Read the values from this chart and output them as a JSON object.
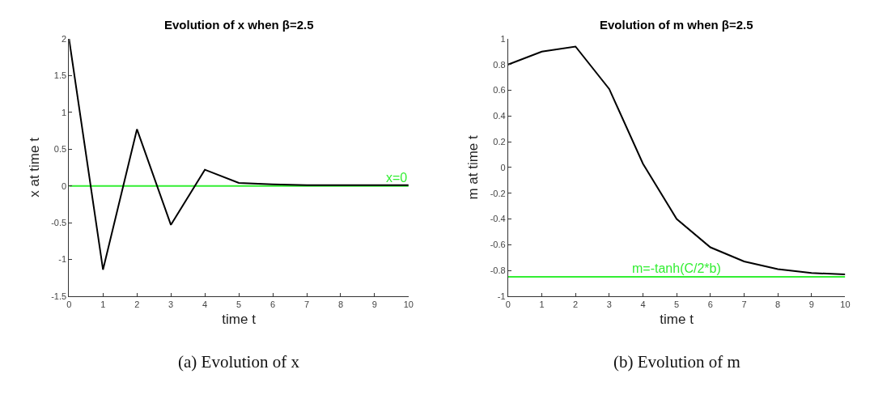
{
  "chart_data": [
    {
      "type": "line",
      "title": "Evolution of x when β=2.5",
      "xlabel": "time t",
      "ylabel": "x at time t",
      "x": [
        0,
        1,
        2,
        3,
        4,
        5,
        6,
        7,
        8,
        9,
        10
      ],
      "series": [
        {
          "color": "#000000",
          "values": [
            2,
            -1.14,
            0.77,
            -0.53,
            0.22,
            0.04,
            0.02,
            0.01,
            0.01,
            0.01,
            0.01
          ]
        }
      ],
      "xlim": [
        0,
        10
      ],
      "xticks": [
        0,
        1,
        2,
        3,
        4,
        5,
        6,
        7,
        8,
        9,
        10
      ],
      "ylim": [
        -1.5,
        2
      ],
      "yticks": [
        -1.5,
        -1,
        -0.5,
        0,
        0.5,
        1,
        1.5,
        2
      ],
      "ref_lines": [
        {
          "axis": "y",
          "value": 0,
          "label": "x=0",
          "color": "#33ee33"
        }
      ],
      "annotations": [
        "(a) Evolution of x"
      ]
    },
    {
      "type": "line",
      "title": "Evolution of m when β=2.5",
      "xlabel": "time t",
      "ylabel": "m at time t",
      "x": [
        0,
        1,
        2,
        3,
        4,
        5,
        6,
        7,
        8,
        9,
        10
      ],
      "series": [
        {
          "color": "#000000",
          "values": [
            0.8,
            0.9,
            0.94,
            0.61,
            0.03,
            -0.4,
            -0.62,
            -0.73,
            -0.79,
            -0.82,
            -0.83
          ]
        }
      ],
      "xlim": [
        0,
        10
      ],
      "xticks": [
        0,
        1,
        2,
        3,
        4,
        5,
        6,
        7,
        8,
        9,
        10
      ],
      "ylim": [
        -1,
        1
      ],
      "yticks": [
        -1,
        -0.8,
        -0.6,
        -0.4,
        -0.2,
        0,
        0.2,
        0.4,
        0.6,
        0.8,
        1
      ],
      "ref_lines": [
        {
          "axis": "y",
          "value": -0.85,
          "label": "m=-tanh(C/2*b)",
          "color": "#33ee33"
        }
      ],
      "annotations": [
        "(b) Evolution of m"
      ]
    }
  ]
}
